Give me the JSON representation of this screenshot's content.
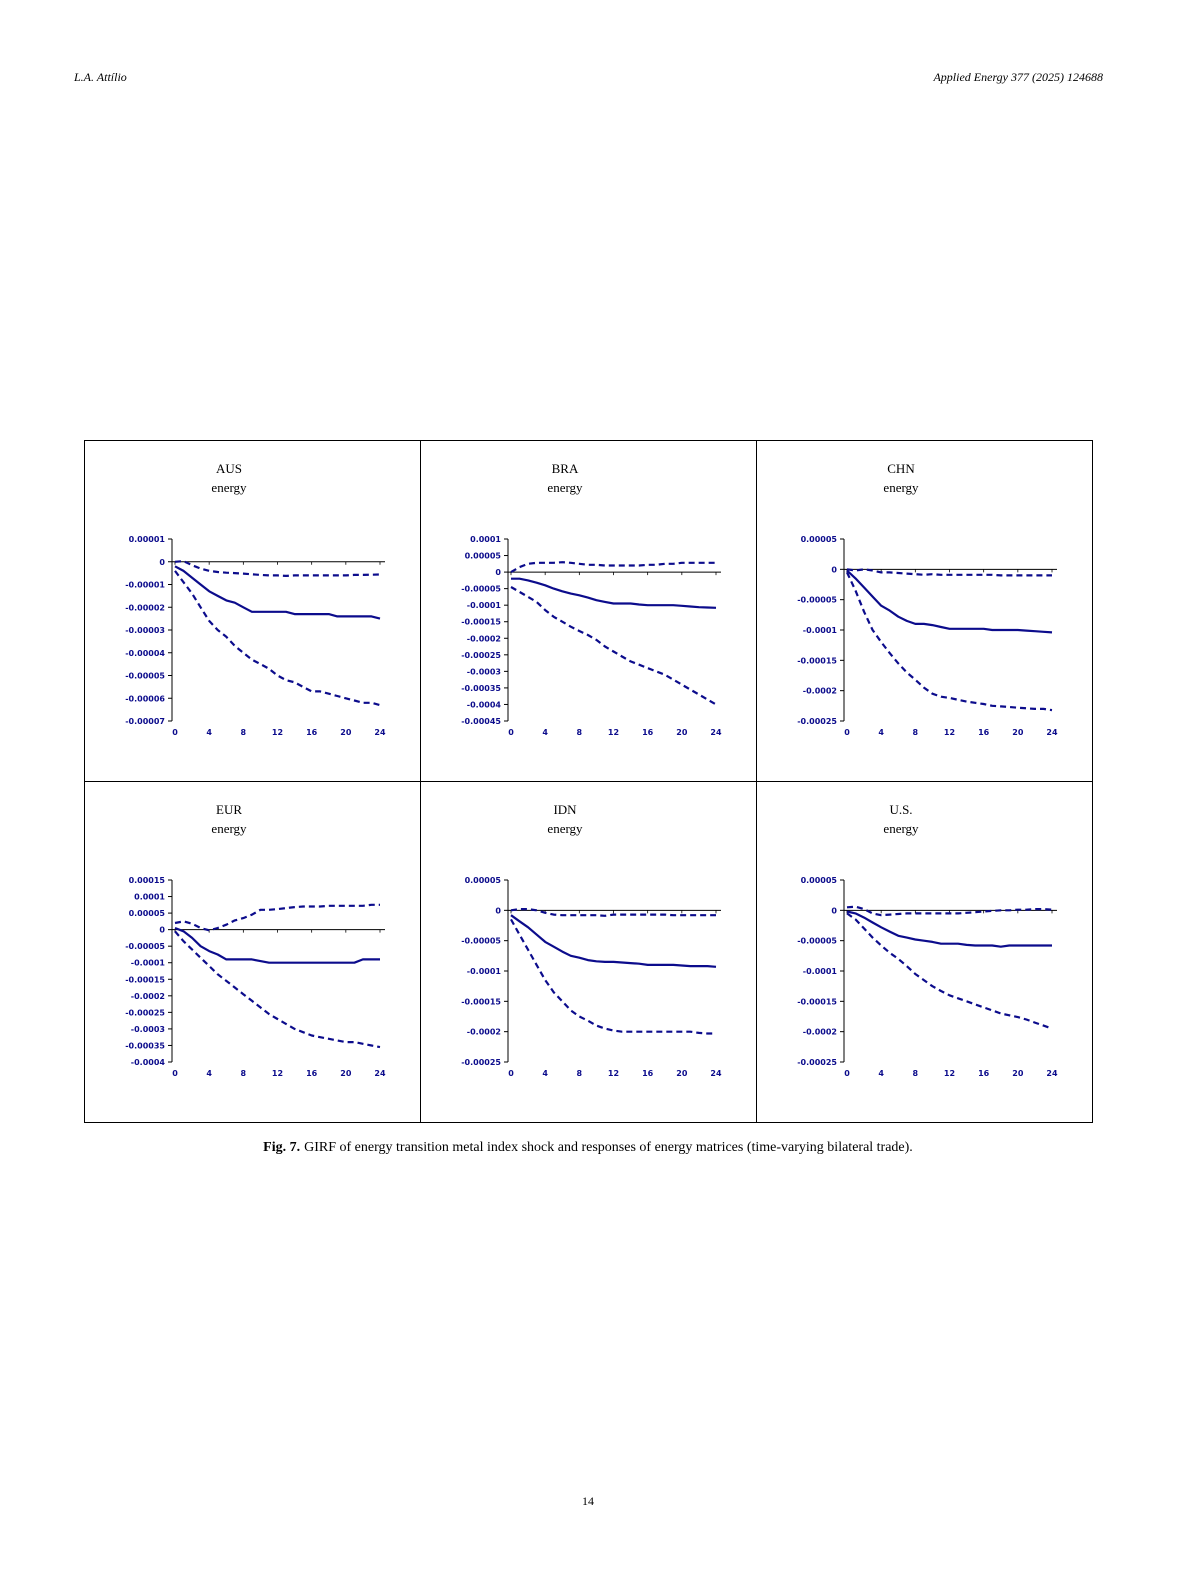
{
  "header": {
    "author": "L.A. Attílio",
    "journal": "Applied Energy 377 (2025) 124688"
  },
  "caption": {
    "label": "Fig. 7.",
    "text": "GIRF of energy transition metal index shock and responses of energy matrices (time-varying bilateral trade)."
  },
  "page_number": "14",
  "colors": {
    "line": "#0c0c8c"
  },
  "chart_data": [
    {
      "type": "line",
      "title": "AUS",
      "subtitle": "energy",
      "x": [
        0,
        1,
        2,
        3,
        4,
        5,
        6,
        7,
        8,
        9,
        10,
        11,
        12,
        13,
        14,
        15,
        16,
        17,
        18,
        19,
        20,
        21,
        22,
        23,
        24
      ],
      "xticks": [
        "0",
        "4",
        "8",
        "12",
        "16",
        "20",
        "24"
      ],
      "ylim": [
        -7e-05,
        1e-05
      ],
      "yticks": [
        1e-05,
        0,
        -1e-05,
        -2e-05,
        -3e-05,
        -4e-05,
        -5e-05,
        -6e-05,
        -7e-05
      ],
      "ytick_labels": [
        "0.00001",
        "0",
        "-0.00001",
        "-0.00002",
        "-0.00003",
        "-0.00004",
        "-0.00005",
        "-0.00006",
        "-0.00007"
      ],
      "series": [
        {
          "style": "solid",
          "values": [
            -2e-06,
            -4e-06,
            -7e-06,
            -1e-05,
            -1.3e-05,
            -1.5e-05,
            -1.7e-05,
            -1.8e-05,
            -2e-05,
            -2.2e-05,
            -2.2e-05,
            -2.2e-05,
            -2.2e-05,
            -2.2e-05,
            -2.3e-05,
            -2.3e-05,
            -2.3e-05,
            -2.3e-05,
            -2.3e-05,
            -2.4e-05,
            -2.4e-05,
            -2.4e-05,
            -2.4e-05,
            -2.4e-05,
            -2.5e-05
          ]
        },
        {
          "style": "dashed",
          "values": [
            0,
            3e-07,
            -1.5e-06,
            -3e-06,
            -4e-06,
            -4.5e-06,
            -4.8e-06,
            -5e-06,
            -5.2e-06,
            -5.5e-06,
            -5.8e-06,
            -6e-06,
            -6e-06,
            -6.2e-06,
            -6e-06,
            -6e-06,
            -6e-06,
            -6e-06,
            -6e-06,
            -6e-06,
            -6e-06,
            -5.8e-06,
            -5.8e-06,
            -5.7e-06,
            -5.6e-06
          ]
        },
        {
          "style": "dashed",
          "values": [
            -4e-06,
            -9e-06,
            -1.4e-05,
            -2e-05,
            -2.6e-05,
            -3e-05,
            -3.3e-05,
            -3.7e-05,
            -4e-05,
            -4.3e-05,
            -4.5e-05,
            -4.7e-05,
            -5e-05,
            -5.2e-05,
            -5.3e-05,
            -5.5e-05,
            -5.7e-05,
            -5.7e-05,
            -5.8e-05,
            -5.9e-05,
            -6e-05,
            -6.1e-05,
            -6.2e-05,
            -6.2e-05,
            -6.3e-05
          ]
        }
      ]
    },
    {
      "type": "line",
      "title": "BRA",
      "subtitle": "energy",
      "x": [
        0,
        1,
        2,
        3,
        4,
        5,
        6,
        7,
        8,
        9,
        10,
        11,
        12,
        13,
        14,
        15,
        16,
        17,
        18,
        19,
        20,
        21,
        22,
        23,
        24
      ],
      "xticks": [
        "0",
        "4",
        "8",
        "12",
        "16",
        "20",
        "24"
      ],
      "ylim": [
        -0.00045,
        0.0001
      ],
      "yticks": [
        0.0001,
        5e-05,
        0,
        -5e-05,
        -0.0001,
        -0.00015,
        -0.0002,
        -0.00025,
        -0.0003,
        -0.00035,
        -0.0004,
        -0.00045
      ],
      "ytick_labels": [
        "0.0001",
        "0.00005",
        "0",
        "-0.00005",
        "-0.0001",
        "-0.00015",
        "-0.0002",
        "-0.00025",
        "-0.0003",
        "-0.00035",
        "-0.0004",
        "-0.00045"
      ],
      "series": [
        {
          "style": "solid",
          "values": [
            -2e-05,
            -2e-05,
            -2.5e-05,
            -3.2e-05,
            -4e-05,
            -5e-05,
            -5.8e-05,
            -6.5e-05,
            -7e-05,
            -7.7e-05,
            -8.5e-05,
            -9e-05,
            -9.5e-05,
            -9.5e-05,
            -9.5e-05,
            -9.8e-05,
            -0.0001,
            -0.0001,
            -0.0001,
            -0.0001,
            -0.000102,
            -0.000104,
            -0.000106,
            -0.000107,
            -0.000108
          ]
        },
        {
          "style": "dashed",
          "values": [
            0,
            1.5e-05,
            2.5e-05,
            2.8e-05,
            2.8e-05,
            2.8e-05,
            3e-05,
            2.8e-05,
            2.5e-05,
            2.2e-05,
            2.2e-05,
            2e-05,
            2e-05,
            2e-05,
            2e-05,
            2e-05,
            2.2e-05,
            2.2e-05,
            2.5e-05,
            2.5e-05,
            2.8e-05,
            2.8e-05,
            2.8e-05,
            2.8e-05,
            2.8e-05
          ]
        },
        {
          "style": "dashed",
          "values": [
            -4.5e-05,
            -6e-05,
            -7.5e-05,
            -9e-05,
            -0.000115,
            -0.000135,
            -0.00015,
            -0.000165,
            -0.000178,
            -0.00019,
            -0.000205,
            -0.000225,
            -0.00024,
            -0.000255,
            -0.00027,
            -0.00028,
            -0.00029,
            -0.0003,
            -0.00031,
            -0.000325,
            -0.00034,
            -0.000355,
            -0.00037,
            -0.000385,
            -0.0004
          ]
        }
      ]
    },
    {
      "type": "line",
      "title": "CHN",
      "subtitle": "energy",
      "x": [
        0,
        1,
        2,
        3,
        4,
        5,
        6,
        7,
        8,
        9,
        10,
        11,
        12,
        13,
        14,
        15,
        16,
        17,
        18,
        19,
        20,
        21,
        22,
        23,
        24
      ],
      "xticks": [
        "0",
        "4",
        "8",
        "12",
        "16",
        "20",
        "24"
      ],
      "ylim": [
        -0.00025,
        5e-05
      ],
      "yticks": [
        5e-05,
        0,
        -5e-05,
        -0.0001,
        -0.00015,
        -0.0002,
        -0.00025
      ],
      "ytick_labels": [
        "0.00005",
        "0",
        "-0.00005",
        "-0.0001",
        "-0.00015",
        "-0.0002",
        "-0.00025"
      ],
      "series": [
        {
          "style": "solid",
          "values": [
            -2e-06,
            -1.5e-05,
            -3e-05,
            -4.5e-05,
            -6e-05,
            -6.8e-05,
            -7.8e-05,
            -8.5e-05,
            -9e-05,
            -9e-05,
            -9.2e-05,
            -9.5e-05,
            -9.8e-05,
            -9.8e-05,
            -9.8e-05,
            -9.8e-05,
            -9.8e-05,
            -0.0001,
            -0.0001,
            -0.0001,
            -0.0001,
            -0.000101,
            -0.000102,
            -0.000103,
            -0.000104
          ]
        },
        {
          "style": "dashed",
          "values": [
            0,
            -2e-06,
            0,
            -2e-06,
            -5e-06,
            -5e-06,
            -6e-06,
            -7e-06,
            -8e-06,
            -9e-06,
            -8e-06,
            -9e-06,
            -9e-06,
            -9e-06,
            -9e-06,
            -9e-06,
            -9e-06,
            -9e-06,
            -1e-05,
            -1e-05,
            -1e-05,
            -1e-05,
            -1e-05,
            -1e-05,
            -1e-05
          ]
        },
        {
          "style": "dashed",
          "values": [
            -5e-06,
            -3.5e-05,
            -7e-05,
            -0.0001,
            -0.00012,
            -0.000138,
            -0.000155,
            -0.00017,
            -0.000182,
            -0.000195,
            -0.000205,
            -0.00021,
            -0.000212,
            -0.000215,
            -0.000218,
            -0.00022,
            -0.000222,
            -0.000225,
            -0.000226,
            -0.000227,
            -0.000228,
            -0.000229,
            -0.00023,
            -0.00023,
            -0.000232
          ]
        }
      ]
    },
    {
      "type": "line",
      "title": "EUR",
      "subtitle": "energy",
      "x": [
        0,
        1,
        2,
        3,
        4,
        5,
        6,
        7,
        8,
        9,
        10,
        11,
        12,
        13,
        14,
        15,
        16,
        17,
        18,
        19,
        20,
        21,
        22,
        23,
        24
      ],
      "xticks": [
        "0",
        "4",
        "8",
        "12",
        "16",
        "20",
        "24"
      ],
      "ylim": [
        -0.0004,
        0.00015
      ],
      "yticks": [
        0.00015,
        0.0001,
        5e-05,
        0,
        -5e-05,
        -0.0001,
        -0.00015,
        -0.0002,
        -0.00025,
        -0.0003,
        -0.00035,
        -0.0004
      ],
      "ytick_labels": [
        "0.00015",
        "0.0001",
        "0.00005",
        "0",
        "-0.00005",
        "-0.0001",
        "-0.00015",
        "-0.0002",
        "-0.00025",
        "-0.0003",
        "-0.00035",
        "-0.0004"
      ],
      "series": [
        {
          "style": "solid",
          "values": [
            5e-06,
            -5e-06,
            -2.5e-05,
            -5e-05,
            -6.5e-05,
            -7.5e-05,
            -9e-05,
            -9e-05,
            -9e-05,
            -9e-05,
            -9.5e-05,
            -0.0001,
            -0.0001,
            -0.0001,
            -0.0001,
            -0.0001,
            -0.0001,
            -0.0001,
            -0.0001,
            -0.0001,
            -0.0001,
            -0.0001,
            -9e-05,
            -9e-05,
            -9e-05
          ]
        },
        {
          "style": "dashed",
          "values": [
            2e-05,
            2.5e-05,
            1.8e-05,
            5e-06,
            -2e-06,
            5e-06,
            1.5e-05,
            2.8e-05,
            3.5e-05,
            4.5e-05,
            6e-05,
            6e-05,
            6.2e-05,
            6.5e-05,
            6.8e-05,
            7e-05,
            7e-05,
            7e-05,
            7.2e-05,
            7.2e-05,
            7.2e-05,
            7.2e-05,
            7.2e-05,
            7.5e-05,
            7.5e-05
          ]
        },
        {
          "style": "dashed",
          "values": [
            -5e-06,
            -3.5e-05,
            -6e-05,
            -8.5e-05,
            -0.00011,
            -0.000135,
            -0.000155,
            -0.000175,
            -0.000195,
            -0.000215,
            -0.000235,
            -0.000255,
            -0.00027,
            -0.000285,
            -0.0003,
            -0.00031,
            -0.00032,
            -0.000325,
            -0.00033,
            -0.000335,
            -0.00034,
            -0.00034,
            -0.000345,
            -0.00035,
            -0.000355
          ]
        }
      ]
    },
    {
      "type": "line",
      "title": "IDN",
      "subtitle": "energy",
      "x": [
        0,
        1,
        2,
        3,
        4,
        5,
        6,
        7,
        8,
        9,
        10,
        11,
        12,
        13,
        14,
        15,
        16,
        17,
        18,
        19,
        20,
        21,
        22,
        23,
        24
      ],
      "xticks": [
        "0",
        "4",
        "8",
        "12",
        "16",
        "20",
        "24"
      ],
      "ylim": [
        -0.00025,
        5e-05
      ],
      "yticks": [
        5e-05,
        0,
        -5e-05,
        -0.0001,
        -0.00015,
        -0.0002,
        -0.00025
      ],
      "ytick_labels": [
        "0.00005",
        "0",
        "-0.00005",
        "-0.0001",
        "-0.00015",
        "-0.0002",
        "-0.00025"
      ],
      "series": [
        {
          "style": "solid",
          "values": [
            -8e-06,
            -1.8e-05,
            -2.8e-05,
            -4e-05,
            -5.2e-05,
            -6e-05,
            -6.8e-05,
            -7.5e-05,
            -7.8e-05,
            -8.2e-05,
            -8.4e-05,
            -8.5e-05,
            -8.5e-05,
            -8.6e-05,
            -8.7e-05,
            -8.8e-05,
            -9e-05,
            -9e-05,
            -9e-05,
            -9e-05,
            -9.1e-05,
            -9.2e-05,
            -9.2e-05,
            -9.2e-05,
            -9.3e-05
          ]
        },
        {
          "style": "dashed",
          "values": [
            0,
            2e-06,
            2e-06,
            0,
            -4e-06,
            -7e-06,
            -8e-06,
            -8e-06,
            -8e-06,
            -8e-06,
            -8e-06,
            -9e-06,
            -7e-06,
            -7e-06,
            -7e-06,
            -7e-06,
            -7e-06,
            -7e-06,
            -7e-06,
            -8e-06,
            -8e-06,
            -8e-06,
            -8e-06,
            -8e-06,
            -8e-06
          ]
        },
        {
          "style": "dashed",
          "values": [
            -1.5e-05,
            -4e-05,
            -6.5e-05,
            -9e-05,
            -0.000115,
            -0.000135,
            -0.00015,
            -0.000165,
            -0.000175,
            -0.000182,
            -0.00019,
            -0.000195,
            -0.000198,
            -0.0002,
            -0.0002,
            -0.0002,
            -0.0002,
            -0.0002,
            -0.0002,
            -0.0002,
            -0.0002,
            -0.0002,
            -0.000202,
            -0.000203,
            -0.000203
          ]
        }
      ]
    },
    {
      "type": "line",
      "title": "U.S.",
      "subtitle": "energy",
      "x": [
        0,
        1,
        2,
        3,
        4,
        5,
        6,
        7,
        8,
        9,
        10,
        11,
        12,
        13,
        14,
        15,
        16,
        17,
        18,
        19,
        20,
        21,
        22,
        23,
        24
      ],
      "xticks": [
        "0",
        "4",
        "8",
        "12",
        "16",
        "20",
        "24"
      ],
      "ylim": [
        -0.00025,
        5e-05
      ],
      "yticks": [
        5e-05,
        0,
        -5e-05,
        -0.0001,
        -0.00015,
        -0.0002,
        -0.00025
      ],
      "ytick_labels": [
        "0.00005",
        "0",
        "-0.00005",
        "-0.0001",
        "-0.00015",
        "-0.0002",
        "-0.00025"
      ],
      "series": [
        {
          "style": "solid",
          "values": [
            -2e-06,
            -5e-06,
            -1.2e-05,
            -2e-05,
            -2.8e-05,
            -3.5e-05,
            -4.2e-05,
            -4.5e-05,
            -4.8e-05,
            -5e-05,
            -5.2e-05,
            -5.5e-05,
            -5.5e-05,
            -5.5e-05,
            -5.7e-05,
            -5.8e-05,
            -5.8e-05,
            -5.8e-05,
            -6e-05,
            -5.8e-05,
            -5.8e-05,
            -5.8e-05,
            -5.8e-05,
            -5.8e-05,
            -5.8e-05
          ]
        },
        {
          "style": "dashed",
          "values": [
            5e-06,
            6e-06,
            2e-06,
            -5e-06,
            -8e-06,
            -7e-06,
            -6e-06,
            -5e-06,
            -5e-06,
            -5e-06,
            -5e-06,
            -5e-06,
            -5e-06,
            -5e-06,
            -4e-06,
            -3e-06,
            -2e-06,
            -1e-06,
            0,
            0,
            1e-06,
            1e-06,
            2e-06,
            2e-06,
            1e-06
          ]
        },
        {
          "style": "dashed",
          "values": [
            -5e-06,
            -1.5e-05,
            -3e-05,
            -4.5e-05,
            -5.8e-05,
            -7e-05,
            -8e-05,
            -9.2e-05,
            -0.000105,
            -0.000115,
            -0.000125,
            -0.000133,
            -0.00014,
            -0.000145,
            -0.00015,
            -0.000155,
            -0.00016,
            -0.000165,
            -0.00017,
            -0.000173,
            -0.000176,
            -0.00018,
            -0.000185,
            -0.00019,
            -0.000195
          ]
        }
      ]
    }
  ]
}
